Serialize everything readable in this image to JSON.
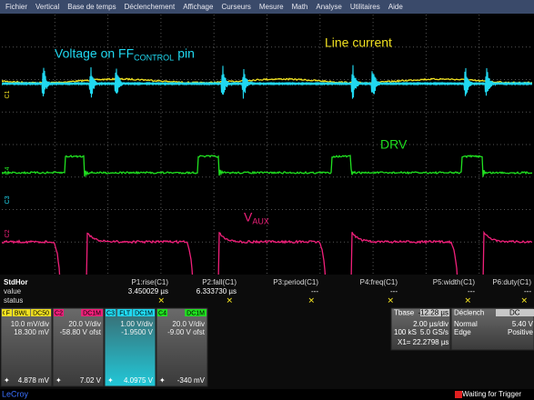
{
  "menu": [
    "Fichier",
    "Vertical",
    "Base de temps",
    "Déclenchement",
    "Affichage",
    "Curseurs",
    "Mesure",
    "Math",
    "Analyse",
    "Utilitaires",
    "Aide"
  ],
  "annotations": {
    "ff_voltage": {
      "text": "Voltage on FF",
      "sub": "CONTROL",
      "after": "pin"
    },
    "line_current": {
      "text": "Line current"
    },
    "drv": {
      "text": "DRV"
    },
    "vaux": {
      "text": "V",
      "sub": "AUX"
    }
  },
  "channel_markers": [
    "C1",
    "C4",
    "C3",
    "C2"
  ],
  "measurements": {
    "label": "StdHor",
    "rows": [
      "value",
      "status"
    ],
    "columns": [
      {
        "name": "P1:rise(C1)",
        "value": "3.450029 µs",
        "status": "✕"
      },
      {
        "name": "P2:fall(C1)",
        "value": "6.333730 µs",
        "status": "✕"
      },
      {
        "name": "P3:period(C1)",
        "value": "---",
        "status": "✕"
      },
      {
        "name": "P4:freq(C1)",
        "value": "---",
        "status": "✕"
      },
      {
        "name": "P5:width(C1)",
        "value": "---",
        "status": "✕"
      },
      {
        "name": "P6:duty(C1)",
        "value": "---",
        "status": "✕"
      }
    ]
  },
  "channels": [
    {
      "id": "C1",
      "tags": [
        "F",
        "BWL",
        "DC50"
      ],
      "lines": [
        "10.0 mV/div",
        "18.300 mV"
      ],
      "reading": "4.878 mV"
    },
    {
      "id": "C2",
      "tags": [
        "DC1M"
      ],
      "lines": [
        "20.0 V/div",
        "-58.80 V ofst"
      ],
      "reading": "7.02 V"
    },
    {
      "id": "C3",
      "tags": [
        "FLT",
        "DC1M"
      ],
      "lines": [
        "1.00 V/div",
        "-1.9500 V"
      ],
      "reading": "4.0975 V"
    },
    {
      "id": "C4",
      "tags": [
        "DC1M"
      ],
      "lines": [
        "20.0 V/div",
        "-9.00 V ofst"
      ],
      "reading": "-340 mV"
    }
  ],
  "timebase": {
    "title": "Tbase",
    "delay": "-12.28 µs",
    "scale": "2.00 µs/div",
    "samples": "100 kS",
    "rate": "5.0 GS/s",
    "cursor": "X1= 22.2798 µs"
  },
  "trigger": {
    "title": "Déclench",
    "coupling": "DC",
    "mode": "Normal",
    "level": "5.40 V",
    "type": "Edge",
    "slope": "Positive"
  },
  "footer": {
    "brand": "LeCroy",
    "status": "Waiting for Trigger"
  }
}
